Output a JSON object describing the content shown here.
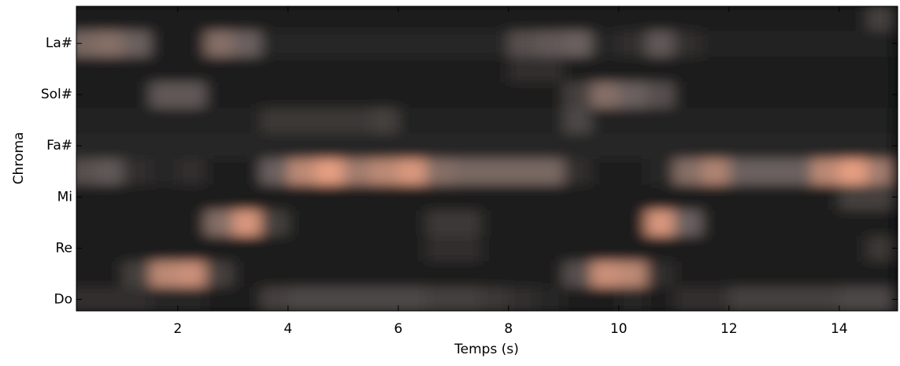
{
  "chart_data": {
    "type": "heatmap",
    "xlabel": "Temps (s)",
    "ylabel": "Chroma",
    "xlim": [
      0.16,
      15.06
    ],
    "ylim": [
      -0.45,
      11.45
    ],
    "xticks": [
      2,
      4,
      6,
      8,
      10,
      12,
      14
    ],
    "yticks": [
      {
        "value": 0,
        "label": "Do"
      },
      {
        "value": 2,
        "label": "Re"
      },
      {
        "value": 4,
        "label": "Mi"
      },
      {
        "value": 6,
        "label": "Fa#"
      },
      {
        "value": 8,
        "label": "Sol#"
      },
      {
        "value": 10,
        "label": "La#"
      }
    ],
    "colormap": [
      "#0b0d0e",
      "#6a605e",
      "#f3a585"
    ],
    "x": [
      0.25,
      0.75,
      1.25,
      1.75,
      2.25,
      2.75,
      3.25,
      3.75,
      4.25,
      4.75,
      5.25,
      5.75,
      6.25,
      6.75,
      7.25,
      7.75,
      8.25,
      8.75,
      9.25,
      9.75,
      10.25,
      10.75,
      11.25,
      11.75,
      12.25,
      12.75,
      13.25,
      13.75,
      14.25,
      14.75
    ],
    "z": [
      [
        0.2,
        0.2,
        0.2,
        0.15,
        0.15,
        0.1,
        0.1,
        0.3,
        0.35,
        0.35,
        0.35,
        0.35,
        0.35,
        0.3,
        0.3,
        0.25,
        0.2,
        0.15,
        0.1,
        0.1,
        0.15,
        0.1,
        0.2,
        0.2,
        0.3,
        0.3,
        0.3,
        0.3,
        0.35,
        0.35
      ],
      [
        0.1,
        0.1,
        0.3,
        0.8,
        0.85,
        0.3,
        0.1,
        0.1,
        0.1,
        0.1,
        0.1,
        0.1,
        0.1,
        0.1,
        0.1,
        0.1,
        0.1,
        0.1,
        0.4,
        0.85,
        0.8,
        0.2,
        0.1,
        0.1,
        0.1,
        0.1,
        0.1,
        0.1,
        0.1,
        0.1
      ],
      [
        0.08,
        0.08,
        0.08,
        0.08,
        0.08,
        0.08,
        0.08,
        0.08,
        0.08,
        0.08,
        0.08,
        0.08,
        0.08,
        0.2,
        0.2,
        0.08,
        0.08,
        0.08,
        0.08,
        0.08,
        0.08,
        0.08,
        0.08,
        0.08,
        0.08,
        0.08,
        0.08,
        0.08,
        0.08,
        0.25
      ],
      [
        0.08,
        0.08,
        0.08,
        0.08,
        0.08,
        0.6,
        0.9,
        0.3,
        0.08,
        0.08,
        0.08,
        0.08,
        0.08,
        0.25,
        0.25,
        0.08,
        0.08,
        0.08,
        0.08,
        0.08,
        0.08,
        0.9,
        0.5,
        0.08,
        0.08,
        0.08,
        0.08,
        0.08,
        0.08,
        0.08
      ],
      [
        0.1,
        0.1,
        0.1,
        0.1,
        0.1,
        0.1,
        0.1,
        0.1,
        0.1,
        0.1,
        0.1,
        0.1,
        0.1,
        0.1,
        0.1,
        0.1,
        0.1,
        0.1,
        0.1,
        0.1,
        0.1,
        0.1,
        0.1,
        0.1,
        0.1,
        0.1,
        0.1,
        0.1,
        0.3,
        0.3
      ],
      [
        0.4,
        0.45,
        0.2,
        0.15,
        0.2,
        0.1,
        0.1,
        0.5,
        0.8,
        0.95,
        0.7,
        0.8,
        0.9,
        0.6,
        0.55,
        0.55,
        0.55,
        0.55,
        0.2,
        0.1,
        0.1,
        0.15,
        0.6,
        0.75,
        0.5,
        0.5,
        0.5,
        0.8,
        0.95,
        0.7
      ],
      [
        0.15,
        0.15,
        0.15,
        0.15,
        0.15,
        0.15,
        0.15,
        0.15,
        0.15,
        0.15,
        0.15,
        0.15,
        0.15,
        0.15,
        0.15,
        0.15,
        0.15,
        0.15,
        0.15,
        0.15,
        0.15,
        0.15,
        0.15,
        0.15,
        0.15,
        0.15,
        0.15,
        0.15,
        0.15,
        0.15
      ],
      [
        0.12,
        0.12,
        0.12,
        0.12,
        0.12,
        0.12,
        0.12,
        0.25,
        0.25,
        0.25,
        0.25,
        0.3,
        0.12,
        0.12,
        0.12,
        0.12,
        0.12,
        0.12,
        0.35,
        0.12,
        0.12,
        0.12,
        0.12,
        0.12,
        0.12,
        0.12,
        0.12,
        0.12,
        0.12,
        0.12
      ],
      [
        0.1,
        0.1,
        0.1,
        0.45,
        0.45,
        0.1,
        0.1,
        0.1,
        0.1,
        0.1,
        0.1,
        0.1,
        0.1,
        0.1,
        0.1,
        0.1,
        0.1,
        0.1,
        0.3,
        0.6,
        0.5,
        0.4,
        0.1,
        0.1,
        0.1,
        0.1,
        0.1,
        0.1,
        0.1,
        0.1
      ],
      [
        0.1,
        0.1,
        0.1,
        0.1,
        0.1,
        0.1,
        0.1,
        0.1,
        0.1,
        0.1,
        0.1,
        0.1,
        0.1,
        0.1,
        0.1,
        0.1,
        0.2,
        0.2,
        0.1,
        0.1,
        0.1,
        0.1,
        0.1,
        0.1,
        0.1,
        0.1,
        0.1,
        0.1,
        0.1,
        0.1
      ],
      [
        0.55,
        0.6,
        0.5,
        0.1,
        0.1,
        0.6,
        0.5,
        0.15,
        0.15,
        0.15,
        0.15,
        0.15,
        0.15,
        0.15,
        0.15,
        0.15,
        0.4,
        0.45,
        0.5,
        0.15,
        0.2,
        0.45,
        0.2,
        0.12,
        0.12,
        0.12,
        0.12,
        0.12,
        0.12,
        0.12
      ],
      [
        0.1,
        0.1,
        0.1,
        0.1,
        0.1,
        0.1,
        0.1,
        0.1,
        0.1,
        0.1,
        0.1,
        0.1,
        0.1,
        0.1,
        0.1,
        0.1,
        0.1,
        0.1,
        0.1,
        0.1,
        0.1,
        0.1,
        0.1,
        0.1,
        0.1,
        0.1,
        0.1,
        0.1,
        0.1,
        0.3
      ]
    ]
  }
}
